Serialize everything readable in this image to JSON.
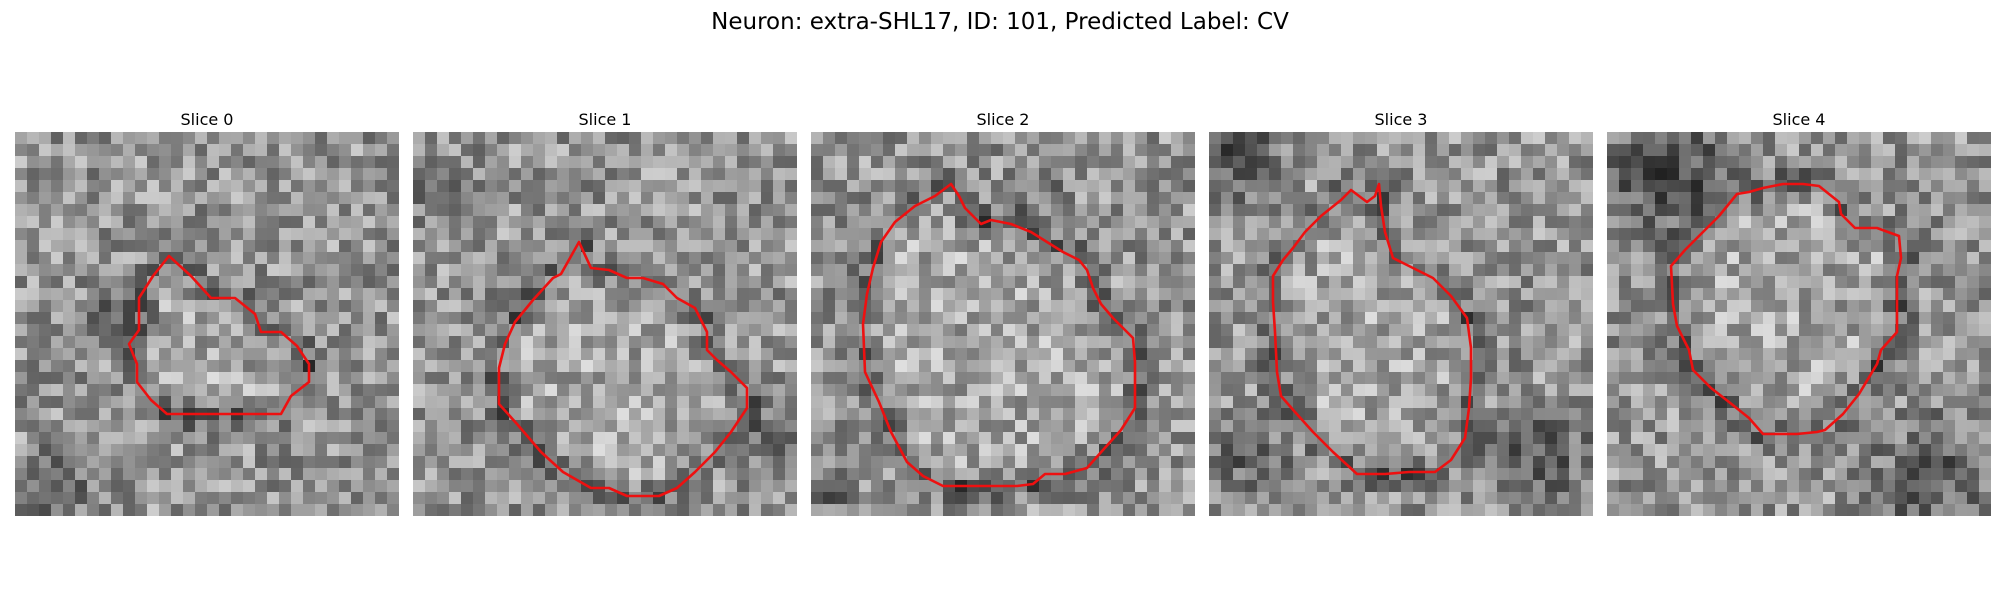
{
  "figure": {
    "title": "Neuron: extra-SHL17, ID: 101, Predicted Label: CV",
    "contour_color": "#ee1010"
  },
  "slices": [
    {
      "title": "Slice 0"
    },
    {
      "title": "Slice 1"
    },
    {
      "title": "Slice 2"
    },
    {
      "title": "Slice 3"
    },
    {
      "title": "Slice 4"
    }
  ]
}
